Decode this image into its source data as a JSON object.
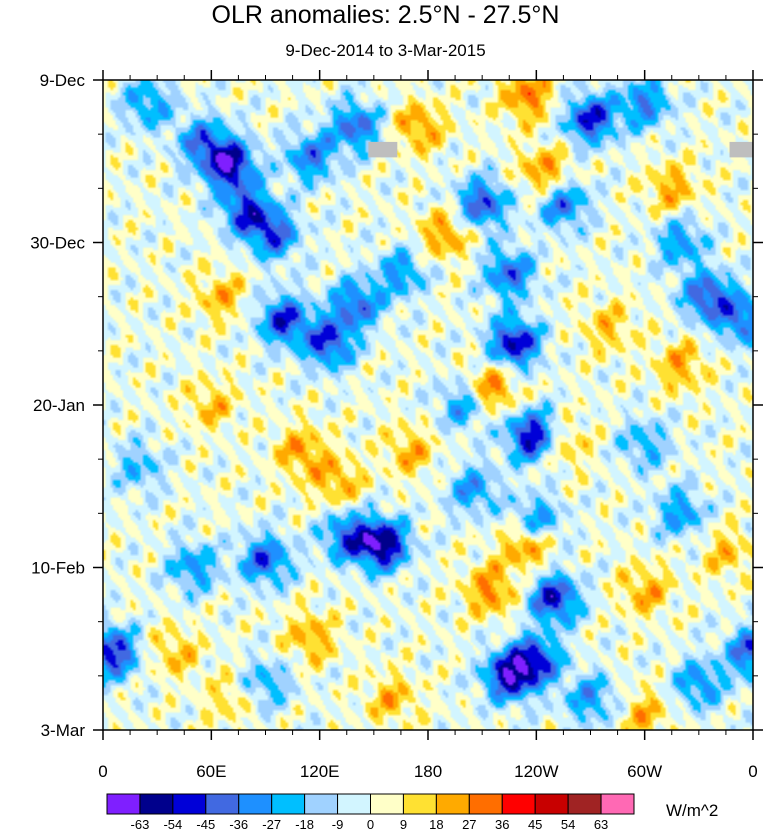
{
  "chart_data": {
    "type": "heatmap",
    "title": "OLR anomalies: 2.5°N - 27.5°N",
    "subtitle": "9-Dec-2014 to 3-Mar-2015",
    "x_axis": {
      "label": "",
      "tick_labels": [
        "0",
        "60E",
        "120E",
        "180",
        "120W",
        "60W",
        "0"
      ],
      "tick_values_deg_east": [
        0,
        60,
        120,
        180,
        240,
        300,
        360
      ],
      "range": [
        0,
        360
      ]
    },
    "y_axis": {
      "label": "",
      "tick_labels": [
        "9-Dec",
        "30-Dec",
        "20-Jan",
        "10-Feb",
        "3-Mar"
      ],
      "tick_values_day_index": [
        0,
        21,
        42,
        63,
        84
      ],
      "range_day_index": [
        0,
        84
      ],
      "minor_tick_every_days": 7
    },
    "colorbar": {
      "units": "W/m^2",
      "levels": [
        -63,
        -54,
        -45,
        -36,
        -27,
        -18,
        -9,
        0,
        9,
        18,
        27,
        36,
        45,
        54,
        63
      ],
      "colors": [
        "#7f1fff",
        "#00008c",
        "#0000d8",
        "#4169e1",
        "#1e90ff",
        "#00bfff",
        "#a0d2ff",
        "#d2f5ff",
        "#ffffc8",
        "#ffe132",
        "#ffaa00",
        "#ff6e00",
        "#ff0000",
        "#c80000",
        "#a02323",
        "#ff69b4"
      ]
    },
    "features": {
      "missing_color": "#bebebe",
      "missing_patches": [
        {
          "lon_from": 147,
          "lon_to": 163,
          "day_from": 8,
          "day_to": 10
        },
        {
          "lon_from": 347,
          "lon_to": 360,
          "day_from": 8,
          "day_to": 10
        }
      ],
      "blobs": [
        {
          "lon": 70,
          "day": 11,
          "value": -60
        },
        {
          "lon": 80,
          "day": 17,
          "value": -45
        },
        {
          "lon": 95,
          "day": 20,
          "value": -40
        },
        {
          "lon": 55,
          "day": 8,
          "value": -35
        },
        {
          "lon": 115,
          "day": 10,
          "value": -36
        },
        {
          "lon": 140,
          "day": 6,
          "value": -40
        },
        {
          "lon": 25,
          "day": 3,
          "value": -30
        },
        {
          "lon": 100,
          "day": 31,
          "value": -48
        },
        {
          "lon": 125,
          "day": 34,
          "value": -46
        },
        {
          "lon": 140,
          "day": 29,
          "value": -40
        },
        {
          "lon": 165,
          "day": 25,
          "value": -30
        },
        {
          "lon": 225,
          "day": 25,
          "value": -40
        },
        {
          "lon": 210,
          "day": 16,
          "value": -45
        },
        {
          "lon": 255,
          "day": 16,
          "value": -38
        },
        {
          "lon": 228,
          "day": 34,
          "value": -55
        },
        {
          "lon": 238,
          "day": 46,
          "value": -58
        },
        {
          "lon": 200,
          "day": 42,
          "value": -30
        },
        {
          "lon": 270,
          "day": 5,
          "value": -50
        },
        {
          "lon": 300,
          "day": 3,
          "value": -35
        },
        {
          "lon": 320,
          "day": 21,
          "value": -30
        },
        {
          "lon": 335,
          "day": 28,
          "value": -45
        },
        {
          "lon": 355,
          "day": 31,
          "value": -38
        },
        {
          "lon": 300,
          "day": 47,
          "value": -25
        },
        {
          "lon": 320,
          "day": 56,
          "value": -30
        },
        {
          "lon": 155,
          "day": 60,
          "value": -63
        },
        {
          "lon": 135,
          "day": 59,
          "value": -40
        },
        {
          "lon": 205,
          "day": 53,
          "value": -30
        },
        {
          "lon": 250,
          "day": 67,
          "value": -52
        },
        {
          "lon": 240,
          "day": 57,
          "value": -35
        },
        {
          "lon": 240,
          "day": 75,
          "value": -45
        },
        {
          "lon": 225,
          "day": 77,
          "value": -56
        },
        {
          "lon": 270,
          "day": 80,
          "value": -30
        },
        {
          "lon": 5,
          "day": 74,
          "value": -52
        },
        {
          "lon": 360,
          "day": 74,
          "value": -45
        },
        {
          "lon": 90,
          "day": 62,
          "value": -42
        },
        {
          "lon": 50,
          "day": 63,
          "value": -30
        },
        {
          "lon": 330,
          "day": 78,
          "value": -32
        },
        {
          "lon": 20,
          "day": 50,
          "value": -22
        },
        {
          "lon": 90,
          "day": 78,
          "value": -25
        },
        {
          "lon": 235,
          "day": 2,
          "value": 30
        },
        {
          "lon": 245,
          "day": 12,
          "value": 28
        },
        {
          "lon": 190,
          "day": 20,
          "value": 26
        },
        {
          "lon": 215,
          "day": 40,
          "value": 32
        },
        {
          "lon": 175,
          "day": 6,
          "value": 25
        },
        {
          "lon": 315,
          "day": 14,
          "value": 22
        },
        {
          "lon": 320,
          "day": 37,
          "value": 22
        },
        {
          "lon": 65,
          "day": 28,
          "value": 20
        },
        {
          "lon": 60,
          "day": 42,
          "value": 18
        },
        {
          "lon": 110,
          "day": 48,
          "value": 24
        },
        {
          "lon": 130,
          "day": 52,
          "value": 22
        },
        {
          "lon": 170,
          "day": 48,
          "value": 20
        },
        {
          "lon": 235,
          "day": 60,
          "value": 32
        },
        {
          "lon": 215,
          "day": 66,
          "value": 28
        },
        {
          "lon": 255,
          "day": 47,
          "value": 20
        },
        {
          "lon": 160,
          "day": 80,
          "value": 20
        },
        {
          "lon": 300,
          "day": 66,
          "value": 22
        },
        {
          "lon": 345,
          "day": 61,
          "value": 18
        },
        {
          "lon": 280,
          "day": 32,
          "value": 18
        },
        {
          "lon": 115,
          "day": 72,
          "value": 22
        },
        {
          "lon": 40,
          "day": 74,
          "value": 18
        },
        {
          "lon": 300,
          "day": 82,
          "value": 20
        },
        {
          "lon": 70,
          "day": 80,
          "value": 15
        }
      ]
    }
  }
}
